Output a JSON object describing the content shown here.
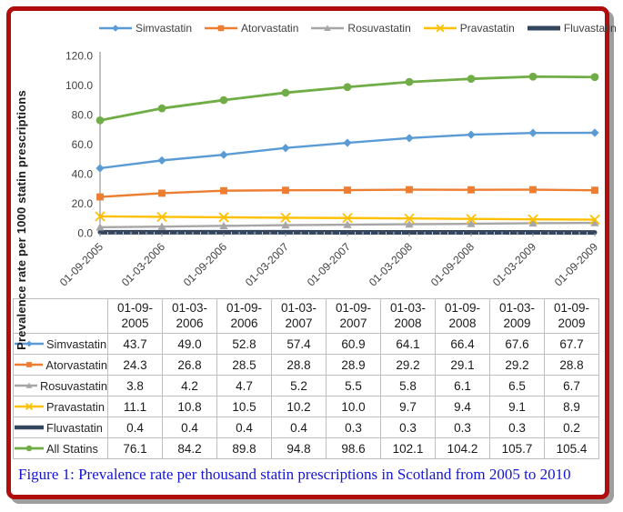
{
  "figure_caption": "Figure 1: Prevalence rate per thousand statin prescriptions in Scotland from 2005 to 2010",
  "colors": {
    "frame_border": "#B00D0D",
    "frame_shadow": "#9E9E9E",
    "caption_text": "#1414D6",
    "axis_line": "#808080",
    "axis_text": "#404040",
    "table_border": "#BFBFBF"
  },
  "chart_data": {
    "type": "line",
    "title": "",
    "xlabel": "",
    "ylabel": "Prevalence rate per 1000 statin prescriptions",
    "ylim": [
      0,
      120
    ],
    "ytick_step": 20,
    "ytick_format_decimals": 1,
    "grid": false,
    "legend_position": "top",
    "categories": [
      "01-09-2005",
      "01-03-2006",
      "01-09-2006",
      "01-03-2007",
      "01-09-2007",
      "01-03-2008",
      "01-09-2008",
      "01-03-2009",
      "01-09-2009"
    ],
    "series": [
      {
        "name": "Simvastatin",
        "color": "#5B9BD5",
        "marker": "diamond",
        "line_width": 2.4,
        "values": [
          43.7,
          49.0,
          52.8,
          57.4,
          60.9,
          64.1,
          66.4,
          67.6,
          67.7
        ]
      },
      {
        "name": "Atorvastatin",
        "color": "#ED7D31",
        "marker": "square",
        "line_width": 2.4,
        "values": [
          24.3,
          26.8,
          28.5,
          28.8,
          28.9,
          29.2,
          29.1,
          29.2,
          28.8
        ]
      },
      {
        "name": "Rosuvastatin",
        "color": "#A6A6A6",
        "marker": "triangle",
        "line_width": 2.4,
        "values": [
          3.8,
          4.2,
          4.7,
          5.2,
          5.5,
          5.8,
          6.1,
          6.5,
          6.7
        ]
      },
      {
        "name": "Pravastatin",
        "color": "#FFC000",
        "marker": "x",
        "line_width": 2.4,
        "values": [
          11.1,
          10.8,
          10.5,
          10.2,
          10.0,
          9.7,
          9.4,
          9.1,
          8.9
        ]
      },
      {
        "name": "Fluvastatin",
        "color": "#34465E",
        "marker": "none",
        "line_width": 5,
        "values": [
          0.4,
          0.4,
          0.4,
          0.4,
          0.3,
          0.3,
          0.3,
          0.3,
          0.2
        ]
      },
      {
        "name": "All Statins",
        "color": "#70AD47",
        "marker": "circle",
        "line_width": 2.8,
        "values": [
          76.1,
          84.2,
          89.8,
          94.8,
          98.6,
          102.1,
          104.2,
          105.7,
          105.4
        ]
      }
    ]
  }
}
